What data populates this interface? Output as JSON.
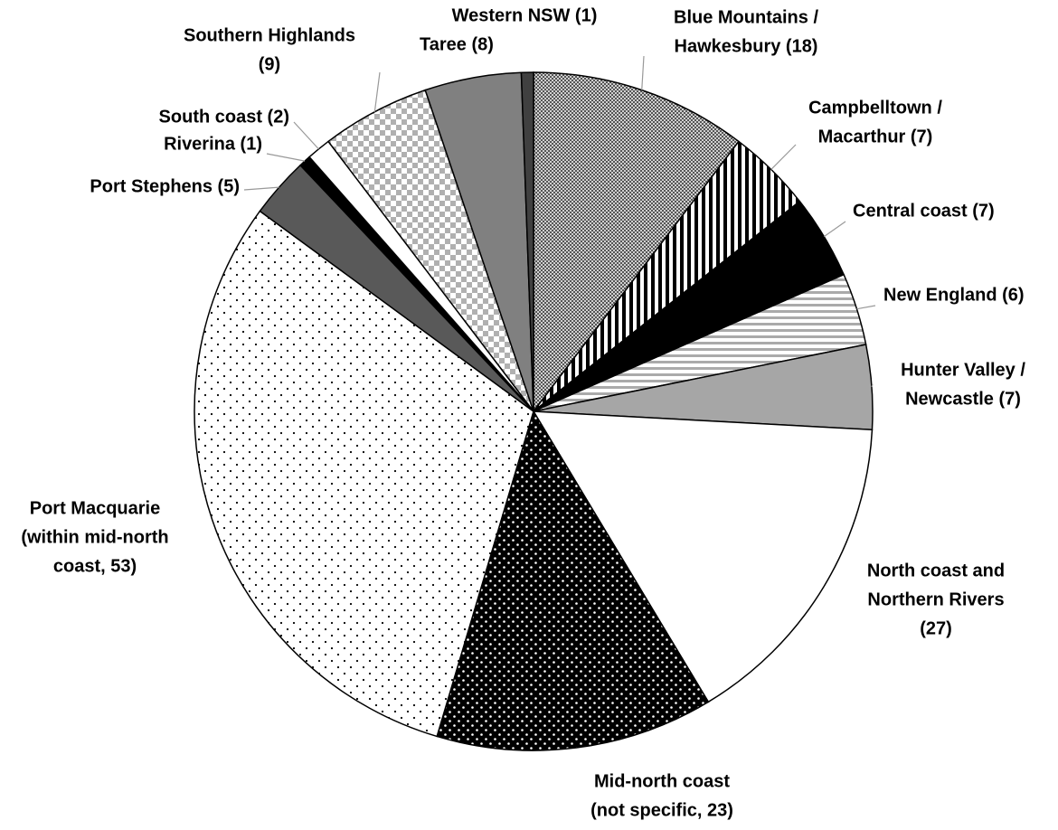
{
  "chart_data": {
    "type": "pie",
    "categories": [
      [
        "Blue Mountains /",
        "Hawkesbury (18)"
      ],
      [
        "Campbelltown /",
        "Macarthur (7)"
      ],
      [
        "Central coast (7)"
      ],
      [
        "New England (6)"
      ],
      [
        "Hunter Valley /",
        "Newcastle (7)"
      ],
      [
        "North coast and",
        "Northern Rivers",
        "(27)"
      ],
      [
        "Mid-north coast",
        "(not specific, 23)"
      ],
      [
        "Port Macquarie",
        "(within mid-north",
        "coast, 53)"
      ],
      [
        "Port Stephens (5)"
      ],
      [
        "Riverina (1)"
      ],
      [
        "South coast (2)"
      ],
      [
        "Southern Highlands",
        "(9)"
      ],
      [
        "Taree (8)"
      ],
      [
        "Western NSW (1)"
      ]
    ],
    "values": [
      18,
      7,
      7,
      6,
      7,
      27,
      23,
      53,
      5,
      1,
      2,
      9,
      8,
      1
    ],
    "fills": [
      "fine-check",
      "vertical-stripes",
      "#000000",
      "horizontal-stripes",
      "#a6a6a6",
      "#ffffff",
      "white-dots-on-black",
      "black-dots-on-white",
      "#595959",
      "#000000",
      "#ffffff",
      "large-check",
      "#808080",
      "#404040"
    ]
  }
}
